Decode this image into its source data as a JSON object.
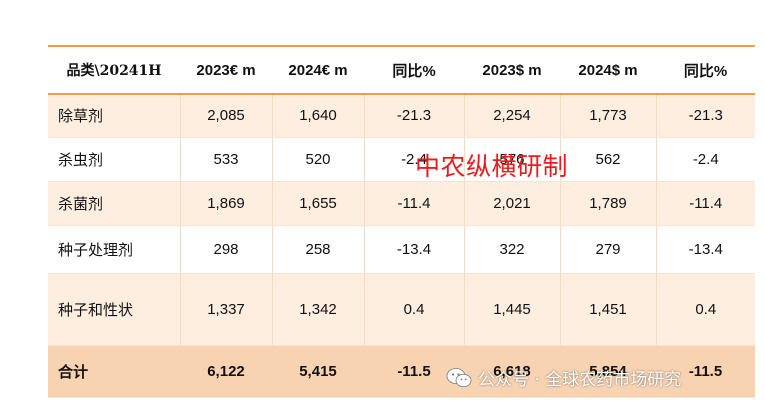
{
  "table": {
    "headers": [
      "品类\\20241H",
      "2023€ m",
      "2024€ m",
      "同比%",
      "2023$ m",
      "2024$ m",
      "同比%"
    ],
    "rows": [
      {
        "label": "除草剂",
        "values": [
          "2,085",
          "1,640",
          "-21.3",
          "2,254",
          "1,773",
          "-21.3"
        ]
      },
      {
        "label": "杀虫剂",
        "values": [
          "533",
          "520",
          "-2.4",
          "576",
          "562",
          "-2.4"
        ]
      },
      {
        "label": "杀菌剂",
        "values": [
          "1,869",
          "1,655",
          "-11.4",
          "2,021",
          "1,789",
          "-11.4"
        ]
      },
      {
        "label": "种子处理剂",
        "values": [
          "298",
          "258",
          "-13.4",
          "322",
          "279",
          "-13.4"
        ]
      },
      {
        "label": "种子和性状",
        "values": [
          "1,337",
          "1,342",
          "0.4",
          "1,445",
          "1,451",
          "0.4"
        ]
      }
    ],
    "total": {
      "label": "合计",
      "values": [
        "6,122",
        "5,415",
        "-11.5",
        "6,618",
        "5,854",
        "-11.5"
      ]
    }
  },
  "watermark": "中农纵横研制",
  "wechat_credit": {
    "icon": "wechat-icon",
    "text": "公众号 · 全球农药市场研究"
  },
  "colors": {
    "header_rule": "#e8a04a",
    "row_shade": "#fdeee0",
    "total_shade": "#f8d3b2",
    "watermark": "#e81c1c"
  }
}
